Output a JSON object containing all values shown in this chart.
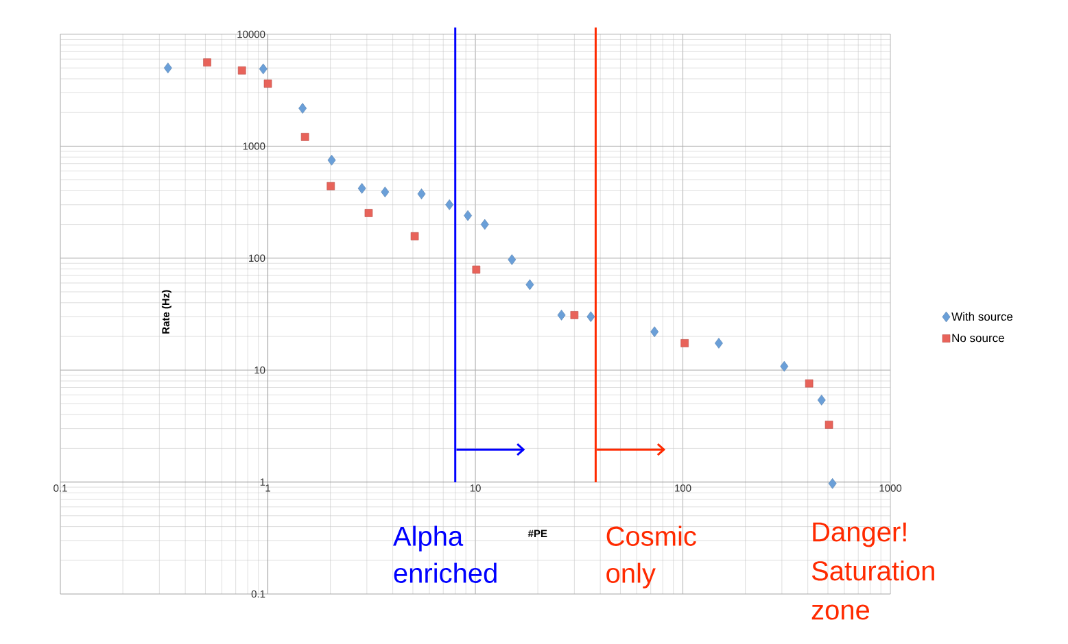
{
  "chart_data": {
    "type": "scatter",
    "xlabel": "#PE",
    "ylabel": "Rate (Hz)",
    "log": "xy",
    "xlim": [
      0.1,
      1000
    ],
    "ylim": [
      0.1,
      10000
    ],
    "xticks": [
      0.1,
      1,
      10,
      100,
      1000
    ],
    "yticks": [
      0.1,
      1,
      10,
      100,
      1000,
      10000
    ],
    "grid": true,
    "legend": "right",
    "series": [
      {
        "name": "With source",
        "color": "#6a9fd8",
        "marker": "diamond",
        "x": [
          0.33,
          0.95,
          1.47,
          2.03,
          2.84,
          3.67,
          5.5,
          7.5,
          9.2,
          11.1,
          15,
          18.3,
          26,
          36,
          73,
          149,
          308,
          466,
          526
        ],
        "values": [
          5000,
          4900,
          2180,
          750,
          420,
          390,
          375,
          300,
          240,
          200,
          97,
          58,
          31,
          30,
          22,
          17.4,
          10.8,
          5.4,
          0.97
        ]
      },
      {
        "name": "No source",
        "color": "#e8635a",
        "marker": "square",
        "x": [
          0.51,
          0.75,
          1.0,
          1.51,
          2.01,
          3.06,
          5.1,
          10.1,
          30,
          102,
          406,
          506
        ],
        "values": [
          5600,
          4750,
          3620,
          1210,
          440,
          253,
          157,
          79,
          31,
          17.4,
          7.6,
          3.25
        ]
      }
    ],
    "ref_lines": [
      {
        "axis": "x",
        "value": 8,
        "label": "Alpha enriched",
        "color": "#0000ff"
      },
      {
        "axis": "x",
        "value": 38,
        "label": "Cosmic only",
        "color": "#ff2a00"
      }
    ],
    "annotations": [
      "Danger! Saturation zone"
    ]
  }
}
